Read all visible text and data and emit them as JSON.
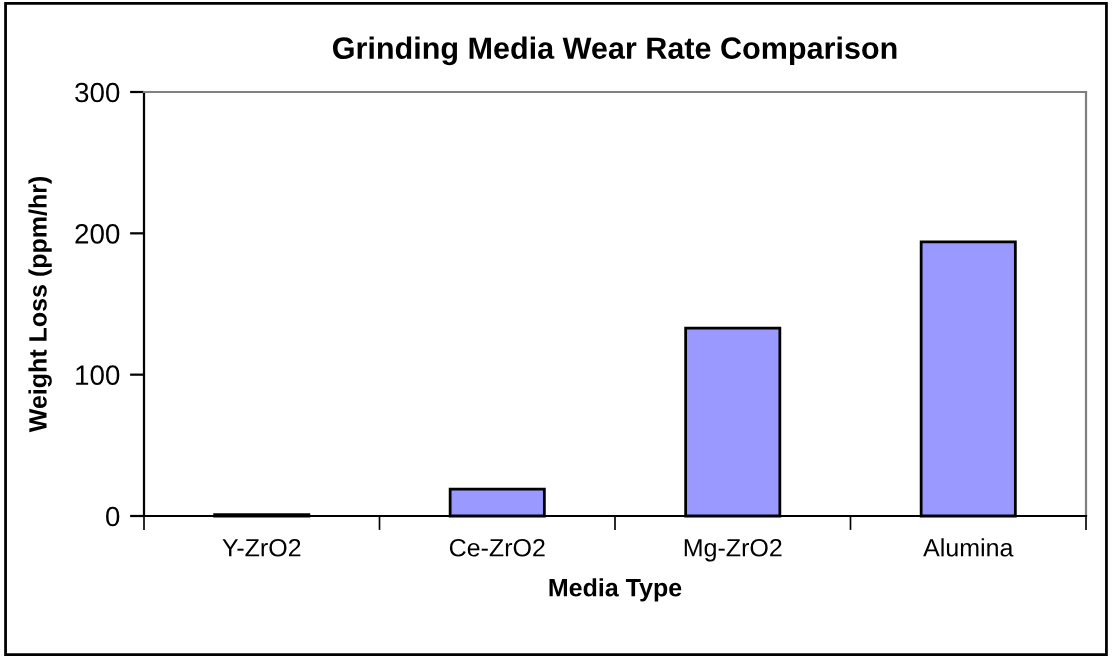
{
  "chart_data": {
    "type": "bar",
    "title": "Grinding Media Wear Rate Comparison",
    "xlabel": "Media Type",
    "ylabel": "Weight Loss (ppm/hr)",
    "categories": [
      "Y-ZrO2",
      "Ce-ZrO2",
      "Mg-ZrO2",
      "Alumina"
    ],
    "values": [
      1,
      19,
      133,
      194
    ],
    "color": "#9999ff",
    "ylim": [
      0,
      300
    ],
    "yticks": [
      0,
      100,
      200,
      300
    ],
    "grid": false,
    "legend": false
  }
}
